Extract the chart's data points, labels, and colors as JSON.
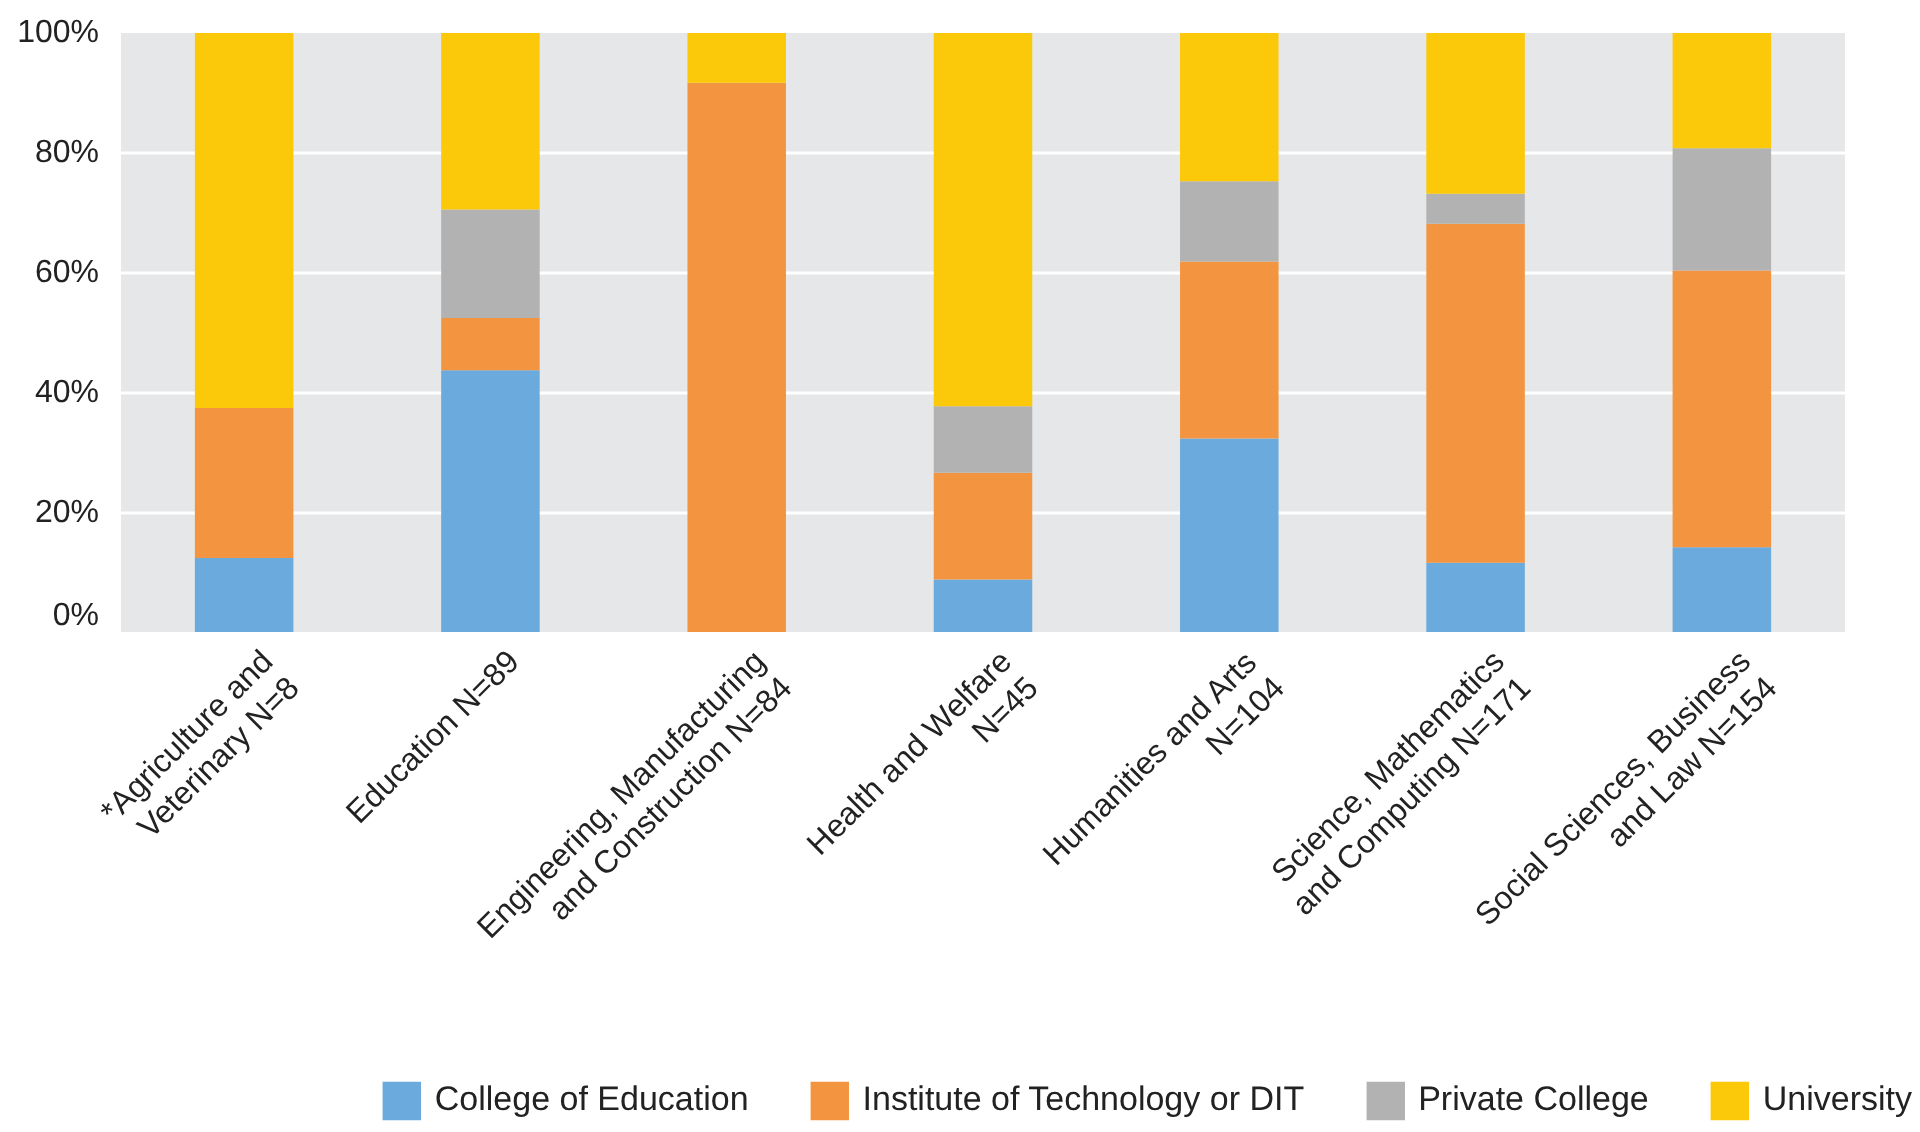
{
  "chart_data": {
    "type": "bar",
    "stacked": true,
    "categories": [
      "*Agriculture and\nVeterinary N=8",
      "Education N=89",
      "Engineering, Manufacturing\nand Construction N=84",
      "Health and Welfare\nN=45",
      "Humanities and Arts\nN=104",
      "Science, Mathematics\nand Computing N=171",
      "Social Sciences, Business\nand Law N=154"
    ],
    "series": [
      {
        "name": "College of Education",
        "color": "#6aaadc",
        "values": [
          12.5,
          43.8,
          0,
          8.9,
          32.4,
          11.7,
          14.3
        ]
      },
      {
        "name": "Institute of Technology or DIT",
        "color": "#f39540",
        "values": [
          25,
          8.7,
          91.7,
          17.8,
          29.5,
          56.5,
          46.1
        ]
      },
      {
        "name": "Private College",
        "color": "#b2b2b2",
        "values": [
          0,
          18.1,
          0,
          11.1,
          13.4,
          5,
          20.4
        ]
      },
      {
        "name": "University",
        "color": "#fcc80a",
        "values": [
          62.5,
          29.4,
          8.3,
          62.2,
          24.7,
          26.8,
          19.2
        ]
      }
    ],
    "ylim": [
      0,
      100
    ],
    "yticks": [
      {
        "value": 0,
        "label": "0%"
      },
      {
        "value": 20,
        "label": "20%"
      },
      {
        "value": 40,
        "label": "40%"
      },
      {
        "value": 60,
        "label": "60%"
      },
      {
        "value": 80,
        "label": "80%"
      },
      {
        "value": 100,
        "label": "100%"
      }
    ],
    "grid": "y",
    "legend": "bottom"
  }
}
